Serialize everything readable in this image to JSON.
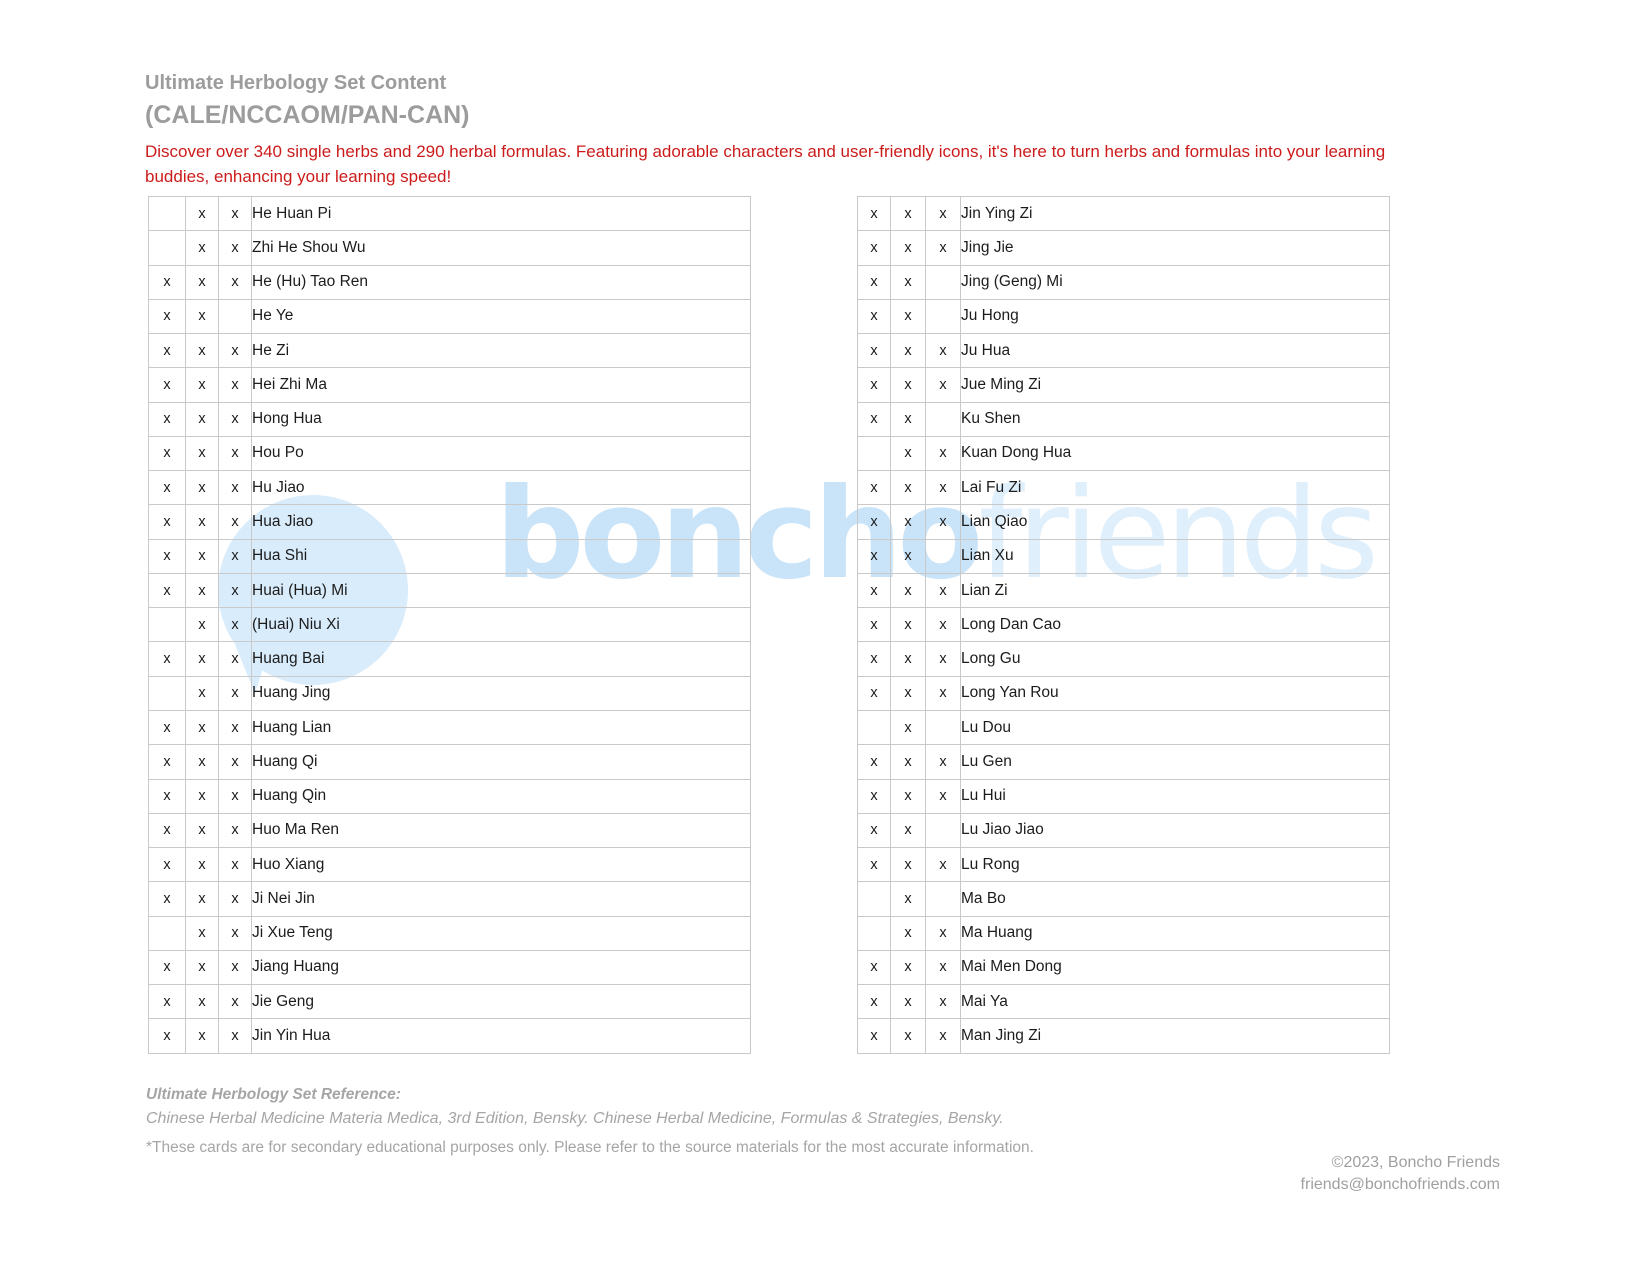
{
  "header": {
    "title": "Ultimate Herbology Set Content",
    "subtitle": "(CALE/NCCAOM/PAN-CAN)",
    "description": "Discover over 340 single herbs and 290 herbal formulas. Featuring adorable characters and user-friendly icons, it's here to turn herbs and formulas into your learning buddies, enhancing your learning speed!"
  },
  "watermark": {
    "bold": "boncho",
    "light": "friends"
  },
  "colors": {
    "heading_gray": "#9c9c9c",
    "accent_red": "#cc1b1b",
    "table_border": "#c9c9c9",
    "cell_text": "#1c1c1c",
    "footer_gray": "#a5a5a5",
    "watermark_bold_blue": "#c9e3f8",
    "watermark_light_blue": "#e0effc",
    "watermark_circle_blue": "#d9ecfb"
  },
  "tables": {
    "left": {
      "rows": [
        {
          "marks": [
            "",
            "x",
            "x"
          ],
          "name": "He Huan Pi"
        },
        {
          "marks": [
            "",
            "x",
            "x"
          ],
          "name": "Zhi He Shou Wu"
        },
        {
          "marks": [
            "x",
            "x",
            "x"
          ],
          "name": "He (Hu) Tao Ren"
        },
        {
          "marks": [
            "x",
            "x",
            ""
          ],
          "name": "He Ye"
        },
        {
          "marks": [
            "x",
            "x",
            "x"
          ],
          "name": "He Zi"
        },
        {
          "marks": [
            "x",
            "x",
            "x"
          ],
          "name": "Hei Zhi Ma"
        },
        {
          "marks": [
            "x",
            "x",
            "x"
          ],
          "name": "Hong Hua"
        },
        {
          "marks": [
            "x",
            "x",
            "x"
          ],
          "name": "Hou Po"
        },
        {
          "marks": [
            "x",
            "x",
            "x"
          ],
          "name": "Hu Jiao"
        },
        {
          "marks": [
            "x",
            "x",
            "x"
          ],
          "name": "Hua Jiao"
        },
        {
          "marks": [
            "x",
            "x",
            "x"
          ],
          "name": "Hua Shi"
        },
        {
          "marks": [
            "x",
            "x",
            "x"
          ],
          "name": "Huai (Hua) Mi"
        },
        {
          "marks": [
            "",
            "x",
            "x"
          ],
          "name": "(Huai) Niu Xi"
        },
        {
          "marks": [
            "x",
            "x",
            "x"
          ],
          "name": "Huang Bai"
        },
        {
          "marks": [
            "",
            "x",
            "x"
          ],
          "name": "Huang Jing"
        },
        {
          "marks": [
            "x",
            "x",
            "x"
          ],
          "name": "Huang Lian"
        },
        {
          "marks": [
            "x",
            "x",
            "x"
          ],
          "name": "Huang Qi"
        },
        {
          "marks": [
            "x",
            "x",
            "x"
          ],
          "name": "Huang Qin"
        },
        {
          "marks": [
            "x",
            "x",
            "x"
          ],
          "name": "Huo Ma Ren"
        },
        {
          "marks": [
            "x",
            "x",
            "x"
          ],
          "name": "Huo Xiang"
        },
        {
          "marks": [
            "x",
            "x",
            "x"
          ],
          "name": "Ji Nei Jin"
        },
        {
          "marks": [
            "",
            "x",
            "x"
          ],
          "name": "Ji Xue Teng"
        },
        {
          "marks": [
            "x",
            "x",
            "x"
          ],
          "name": "Jiang Huang"
        },
        {
          "marks": [
            "x",
            "x",
            "x"
          ],
          "name": "Jie Geng"
        },
        {
          "marks": [
            "x",
            "x",
            "x"
          ],
          "name": "Jin Yin Hua"
        }
      ]
    },
    "right": {
      "rows": [
        {
          "marks": [
            "x",
            "x",
            "x"
          ],
          "name": "Jin Ying Zi"
        },
        {
          "marks": [
            "x",
            "x",
            "x"
          ],
          "name": "Jing Jie"
        },
        {
          "marks": [
            "x",
            "x",
            ""
          ],
          "name": "Jing (Geng) Mi"
        },
        {
          "marks": [
            "x",
            "x",
            ""
          ],
          "name": "Ju Hong"
        },
        {
          "marks": [
            "x",
            "x",
            "x"
          ],
          "name": "Ju Hua"
        },
        {
          "marks": [
            "x",
            "x",
            "x"
          ],
          "name": "Jue Ming Zi"
        },
        {
          "marks": [
            "x",
            "x",
            ""
          ],
          "name": "Ku Shen"
        },
        {
          "marks": [
            "",
            "x",
            "x"
          ],
          "name": "Kuan Dong Hua"
        },
        {
          "marks": [
            "x",
            "x",
            "x"
          ],
          "name": "Lai Fu Zi"
        },
        {
          "marks": [
            "x",
            "x",
            "x"
          ],
          "name": "Lian Qiao"
        },
        {
          "marks": [
            "x",
            "x",
            ""
          ],
          "name": "Lian Xu"
        },
        {
          "marks": [
            "x",
            "x",
            "x"
          ],
          "name": "Lian Zi"
        },
        {
          "marks": [
            "x",
            "x",
            "x"
          ],
          "name": "Long Dan Cao"
        },
        {
          "marks": [
            "x",
            "x",
            "x"
          ],
          "name": "Long Gu"
        },
        {
          "marks": [
            "x",
            "x",
            "x"
          ],
          "name": "Long Yan Rou"
        },
        {
          "marks": [
            "",
            "x",
            ""
          ],
          "name": "Lu Dou"
        },
        {
          "marks": [
            "x",
            "x",
            "x"
          ],
          "name": "Lu Gen"
        },
        {
          "marks": [
            "x",
            "x",
            "x"
          ],
          "name": "Lu Hui"
        },
        {
          "marks": [
            "x",
            "x",
            ""
          ],
          "name": "Lu Jiao Jiao"
        },
        {
          "marks": [
            "x",
            "x",
            "x"
          ],
          "name": "Lu Rong"
        },
        {
          "marks": [
            "",
            "x",
            ""
          ],
          "name": "Ma Bo"
        },
        {
          "marks": [
            "",
            "x",
            "x"
          ],
          "name": "Ma Huang"
        },
        {
          "marks": [
            "x",
            "x",
            "x"
          ],
          "name": "Mai Men Dong"
        },
        {
          "marks": [
            "x",
            "x",
            "x"
          ],
          "name": "Mai Ya"
        },
        {
          "marks": [
            "x",
            "x",
            "x"
          ],
          "name": "Man Jing Zi"
        }
      ]
    }
  },
  "footer": {
    "reference_title": "Ultimate Herbology Set Reference:",
    "reference_text": "Chinese Herbal Medicine Materia Medica, 3rd Edition, Bensky. Chinese Herbal Medicine, Formulas & Strategies, Bensky.",
    "disclaimer": "*These cards are for secondary educational purposes only. Please refer to the source materials for the most accurate information.",
    "copyright": "©2023, Boncho Friends",
    "email": "friends@bonchofriends.com"
  }
}
